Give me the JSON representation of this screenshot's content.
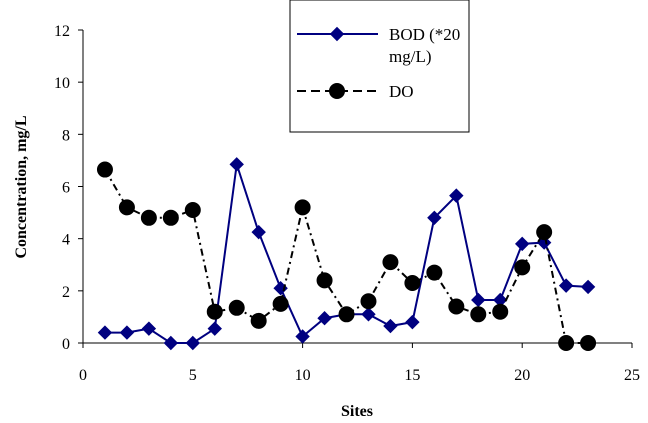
{
  "chart_data": {
    "type": "line",
    "xlabel": "Sites",
    "ylabel": "Concentration, mg/L",
    "xlim": [
      0,
      25
    ],
    "ylim": [
      0,
      12
    ],
    "xticks": [
      0,
      5,
      10,
      15,
      20,
      25
    ],
    "yticks": [
      0,
      2,
      4,
      6,
      8,
      10,
      12
    ],
    "grid": false,
    "legend_position": "top-center",
    "series": [
      {
        "name": "BOD (*20 mg/L)",
        "legend_lines": [
          "BOD (*20",
          "mg/L)"
        ],
        "color": "#000080",
        "line_style": "solid",
        "marker": "diamond",
        "x": [
          1,
          2,
          3,
          4,
          5,
          6,
          7,
          8,
          9,
          10,
          11,
          12,
          13,
          14,
          15,
          16,
          17,
          18,
          19,
          20,
          21,
          22,
          23
        ],
        "y": [
          0.4,
          0.4,
          0.55,
          0.0,
          0.0,
          0.55,
          6.85,
          4.25,
          2.1,
          0.25,
          0.95,
          1.1,
          1.1,
          0.65,
          0.8,
          4.8,
          5.65,
          1.65,
          1.65,
          3.8,
          3.85,
          2.2,
          2.15
        ]
      },
      {
        "name": "DO",
        "legend_lines": [
          "DO"
        ],
        "color": "#000000",
        "line_style": "dashdot",
        "marker": "circle",
        "x": [
          1,
          2,
          3,
          4,
          5,
          6,
          7,
          8,
          9,
          10,
          11,
          12,
          13,
          14,
          15,
          16,
          17,
          18,
          19,
          20,
          21,
          22,
          23
        ],
        "y": [
          6.65,
          5.2,
          4.8,
          4.8,
          5.1,
          1.2,
          1.35,
          0.85,
          1.5,
          5.2,
          2.4,
          1.1,
          1.6,
          3.1,
          2.3,
          2.7,
          1.4,
          1.1,
          1.2,
          2.9,
          4.25,
          0.0,
          0.0
        ]
      }
    ]
  }
}
